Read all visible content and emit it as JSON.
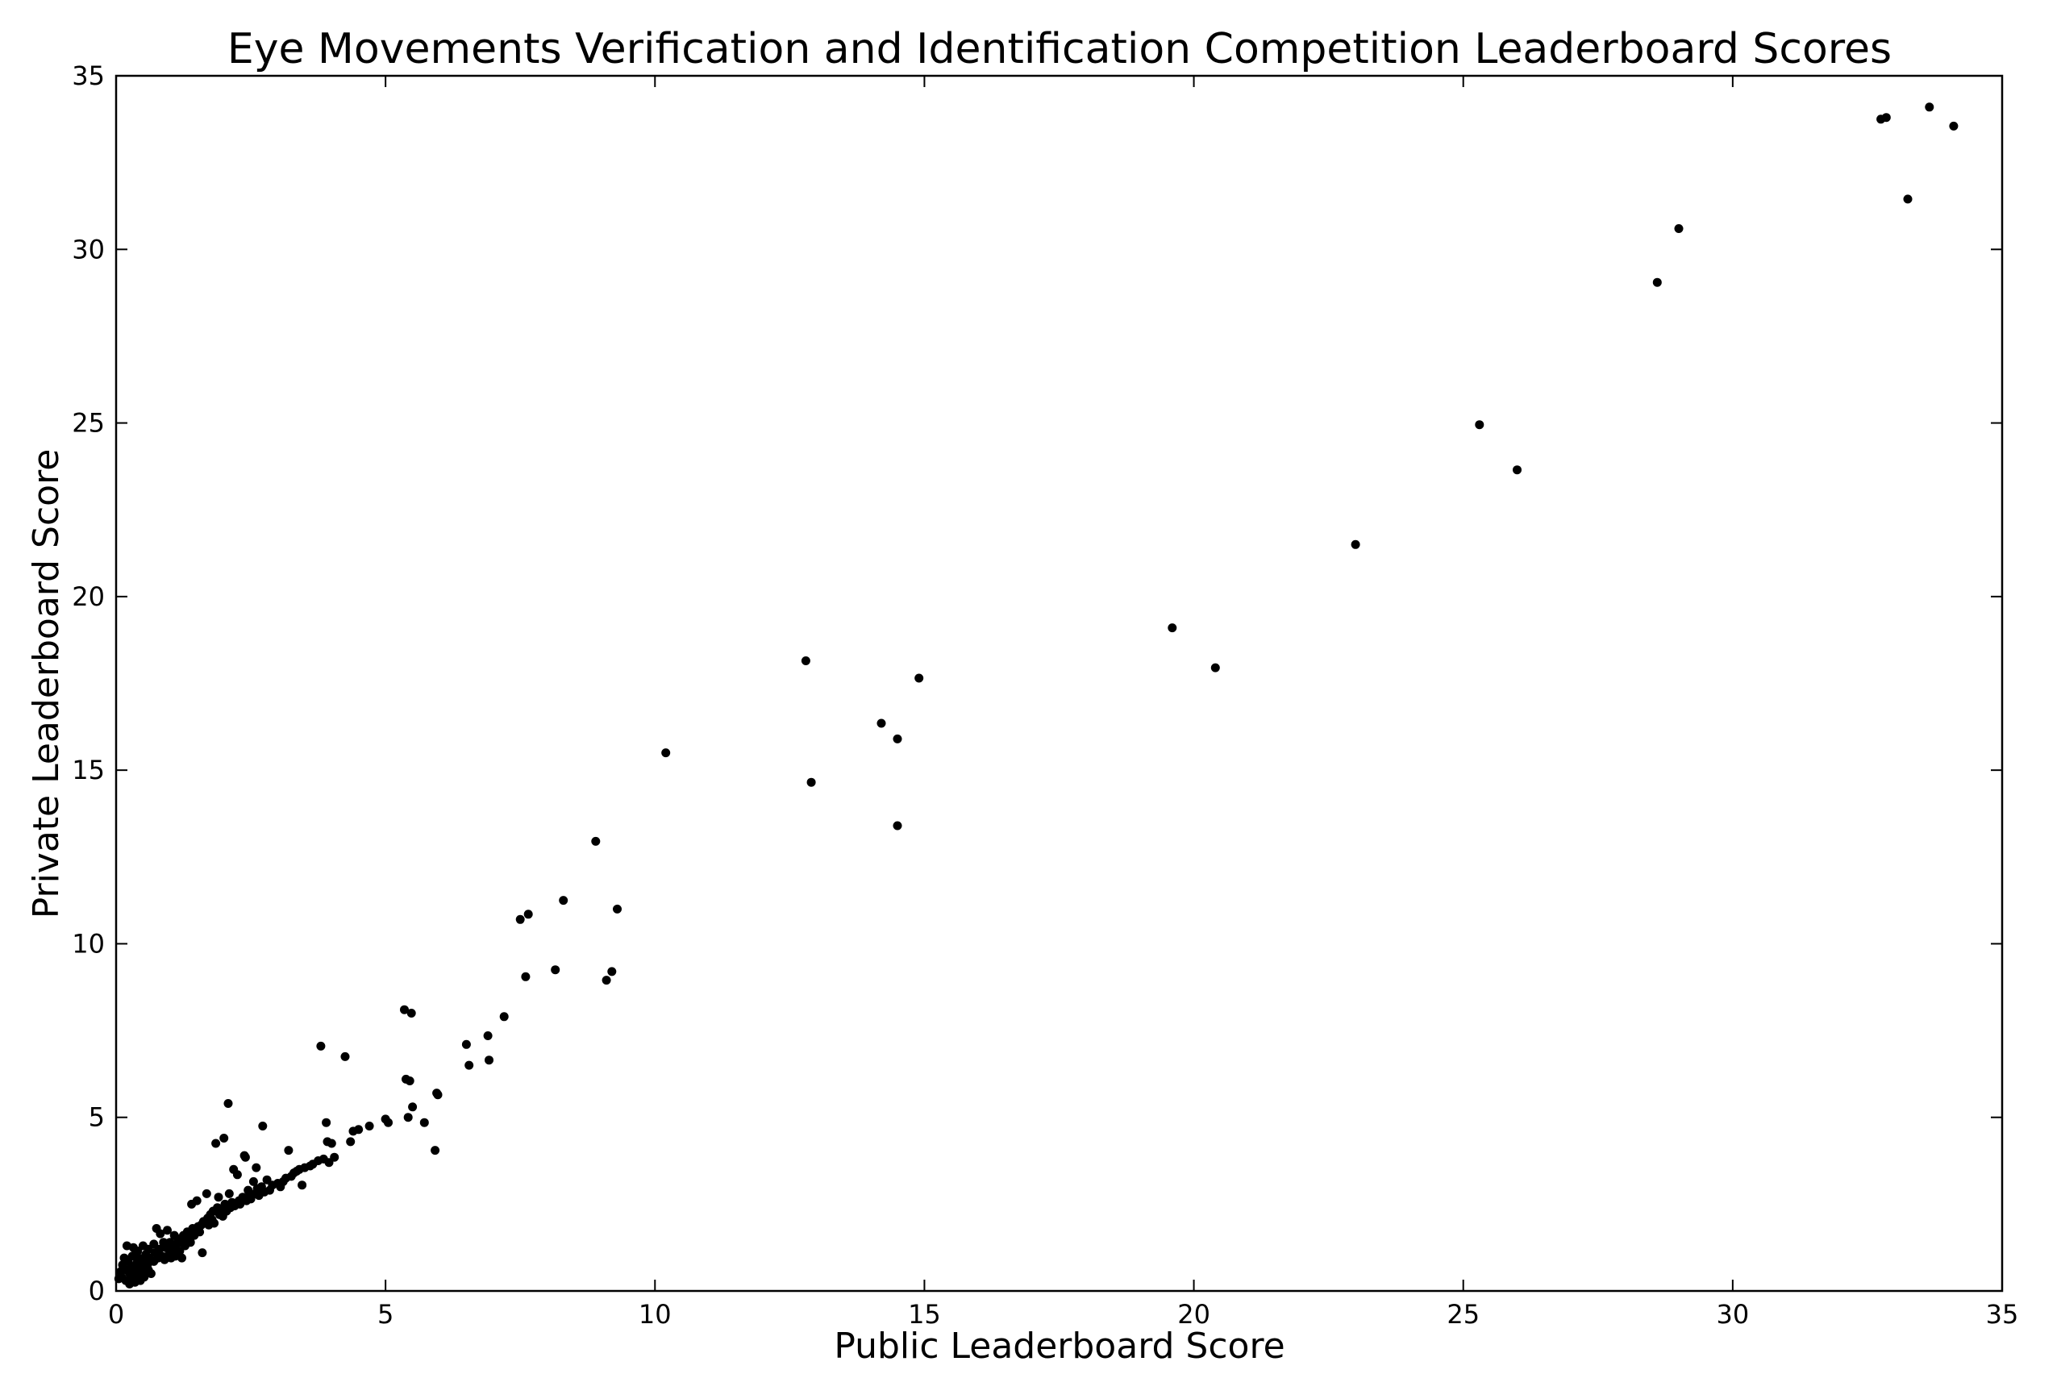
{
  "chart_data": {
    "type": "scatter",
    "title": "Eye Movements Verification and Identification Competition Leaderboard Scores",
    "xlabel": "Public Leaderboard Score",
    "ylabel": "Private Leaderboard Score",
    "xlim": [
      0,
      35
    ],
    "ylim": [
      0,
      35
    ],
    "xticks": [
      "0",
      "5",
      "10",
      "15",
      "20",
      "25",
      "30",
      "35"
    ],
    "yticks": [
      "0",
      "5",
      "10",
      "15",
      "20",
      "25",
      "30",
      "35"
    ],
    "grid": false,
    "legend": "none",
    "marker_color": "#000000",
    "points": [
      [
        0.05,
        0.35
      ],
      [
        0.08,
        0.55
      ],
      [
        0.1,
        0.4
      ],
      [
        0.12,
        0.75
      ],
      [
        0.15,
        0.95
      ],
      [
        0.18,
        0.3
      ],
      [
        0.2,
        0.6
      ],
      [
        0.2,
        1.3
      ],
      [
        0.22,
        0.85
      ],
      [
        0.25,
        0.2
      ],
      [
        0.25,
        0.5
      ],
      [
        0.28,
        0.7
      ],
      [
        0.3,
        1.0
      ],
      [
        0.3,
        0.35
      ],
      [
        0.32,
        1.25
      ],
      [
        0.35,
        0.25
      ],
      [
        0.35,
        0.6
      ],
      [
        0.38,
        0.8
      ],
      [
        0.4,
        1.15
      ],
      [
        0.4,
        0.45
      ],
      [
        0.42,
        0.95
      ],
      [
        0.45,
        0.3
      ],
      [
        0.45,
        0.7
      ],
      [
        0.48,
        0.55
      ],
      [
        0.5,
        1.3
      ],
      [
        0.5,
        0.9
      ],
      [
        0.52,
        0.4
      ],
      [
        0.55,
        1.05
      ],
      [
        0.58,
        0.75
      ],
      [
        0.6,
        0.6
      ],
      [
        0.6,
        1.2
      ],
      [
        0.62,
        0.95
      ],
      [
        0.65,
        0.5
      ],
      [
        0.7,
        1.35
      ],
      [
        0.7,
        0.85
      ],
      [
        0.72,
        1.1
      ],
      [
        0.75,
        1.8
      ],
      [
        0.78,
        0.95
      ],
      [
        0.8,
        1.2
      ],
      [
        0.82,
        1.65
      ],
      [
        0.85,
        1.0
      ],
      [
        0.88,
        1.4
      ],
      [
        0.9,
        0.9
      ],
      [
        0.92,
        1.25
      ],
      [
        0.95,
        1.75
      ],
      [
        0.98,
        1.05
      ],
      [
        1.0,
        1.4
      ],
      [
        1.02,
        0.95
      ],
      [
        1.05,
        1.2
      ],
      [
        1.08,
        1.6
      ],
      [
        1.1,
        1.0
      ],
      [
        1.12,
        1.35
      ],
      [
        1.15,
        1.5
      ],
      [
        1.18,
        1.15
      ],
      [
        1.2,
        1.4
      ],
      [
        1.22,
        0.95
      ],
      [
        1.25,
        1.6
      ],
      [
        1.28,
        1.3
      ],
      [
        1.3,
        1.45
      ],
      [
        1.32,
        1.7
      ],
      [
        1.35,
        1.55
      ],
      [
        1.38,
        1.4
      ],
      [
        1.4,
        2.5
      ],
      [
        1.42,
        1.8
      ],
      [
        1.45,
        1.6
      ],
      [
        1.48,
        1.75
      ],
      [
        1.5,
        2.6
      ],
      [
        1.52,
        1.85
      ],
      [
        1.55,
        1.7
      ],
      [
        1.58,
        1.9
      ],
      [
        1.6,
        1.1
      ],
      [
        1.62,
        2.0
      ],
      [
        1.65,
        1.95
      ],
      [
        1.68,
        2.8
      ],
      [
        1.7,
        2.1
      ],
      [
        1.72,
        1.9
      ],
      [
        1.75,
        2.2
      ],
      [
        1.78,
        2.05
      ],
      [
        1.8,
        2.3
      ],
      [
        1.82,
        1.95
      ],
      [
        1.85,
        4.25
      ],
      [
        1.88,
        2.4
      ],
      [
        1.9,
        2.7
      ],
      [
        1.92,
        2.2
      ],
      [
        1.95,
        2.35
      ],
      [
        1.98,
        2.15
      ],
      [
        2.0,
        4.4
      ],
      [
        2.02,
        2.5
      ],
      [
        2.05,
        2.3
      ],
      [
        2.08,
        5.4
      ],
      [
        2.1,
        2.8
      ],
      [
        2.12,
        2.4
      ],
      [
        2.15,
        2.55
      ],
      [
        2.18,
        3.5
      ],
      [
        2.2,
        2.45
      ],
      [
        2.25,
        3.35
      ],
      [
        2.28,
        2.6
      ],
      [
        2.3,
        2.5
      ],
      [
        2.35,
        2.7
      ],
      [
        2.38,
        3.9
      ],
      [
        2.4,
        3.85
      ],
      [
        2.42,
        2.6
      ],
      [
        2.45,
        2.9
      ],
      [
        2.48,
        2.75
      ],
      [
        2.5,
        2.65
      ],
      [
        2.55,
        3.15
      ],
      [
        2.58,
        2.8
      ],
      [
        2.6,
        3.55
      ],
      [
        2.62,
        2.95
      ],
      [
        2.65,
        2.75
      ],
      [
        2.7,
        3.0
      ],
      [
        2.72,
        4.75
      ],
      [
        2.75,
        2.85
      ],
      [
        2.8,
        3.2
      ],
      [
        2.85,
        2.9
      ],
      [
        2.9,
        3.05
      ],
      [
        3.0,
        3.1
      ],
      [
        3.05,
        3.0
      ],
      [
        3.1,
        3.15
      ],
      [
        3.15,
        3.25
      ],
      [
        3.2,
        4.05
      ],
      [
        3.25,
        3.3
      ],
      [
        3.3,
        3.4
      ],
      [
        3.35,
        3.45
      ],
      [
        3.4,
        3.5
      ],
      [
        3.45,
        3.05
      ],
      [
        3.5,
        3.55
      ],
      [
        3.6,
        3.6
      ],
      [
        3.65,
        3.65
      ],
      [
        3.75,
        3.75
      ],
      [
        3.8,
        7.05
      ],
      [
        3.85,
        3.8
      ],
      [
        3.9,
        4.85
      ],
      [
        3.92,
        4.3
      ],
      [
        3.95,
        3.7
      ],
      [
        4.0,
        4.25
      ],
      [
        4.05,
        3.85
      ],
      [
        4.25,
        6.75
      ],
      [
        4.35,
        4.3
      ],
      [
        4.4,
        4.6
      ],
      [
        4.5,
        4.65
      ],
      [
        4.7,
        4.75
      ],
      [
        5.0,
        4.95
      ],
      [
        5.05,
        4.85
      ],
      [
        5.35,
        8.1
      ],
      [
        5.38,
        6.1
      ],
      [
        5.42,
        5.0
      ],
      [
        5.45,
        6.05
      ],
      [
        5.48,
        8.0
      ],
      [
        5.5,
        5.3
      ],
      [
        5.72,
        4.85
      ],
      [
        5.92,
        4.05
      ],
      [
        5.95,
        5.7
      ],
      [
        5.97,
        5.65
      ],
      [
        6.5,
        7.1
      ],
      [
        6.55,
        6.5
      ],
      [
        6.9,
        7.35
      ],
      [
        6.92,
        6.65
      ],
      [
        7.2,
        7.9
      ],
      [
        7.5,
        10.7
      ],
      [
        7.6,
        9.05
      ],
      [
        7.65,
        10.85
      ],
      [
        8.15,
        9.25
      ],
      [
        8.3,
        11.25
      ],
      [
        8.9,
        12.95
      ],
      [
        9.1,
        8.95
      ],
      [
        9.2,
        9.2
      ],
      [
        9.3,
        11.0
      ],
      [
        10.2,
        15.5
      ],
      [
        12.8,
        18.15
      ],
      [
        12.9,
        14.65
      ],
      [
        14.2,
        16.35
      ],
      [
        14.5,
        15.9
      ],
      [
        14.5,
        13.4
      ],
      [
        14.9,
        17.65
      ],
      [
        19.6,
        19.1
      ],
      [
        20.4,
        17.95
      ],
      [
        23.0,
        21.5
      ],
      [
        25.3,
        24.95
      ],
      [
        26.0,
        23.65
      ],
      [
        28.6,
        29.05
      ],
      [
        29.0,
        30.6
      ],
      [
        32.75,
        33.75
      ],
      [
        32.85,
        33.8
      ],
      [
        33.25,
        31.45
      ],
      [
        33.65,
        34.1
      ],
      [
        34.1,
        33.55
      ]
    ]
  }
}
